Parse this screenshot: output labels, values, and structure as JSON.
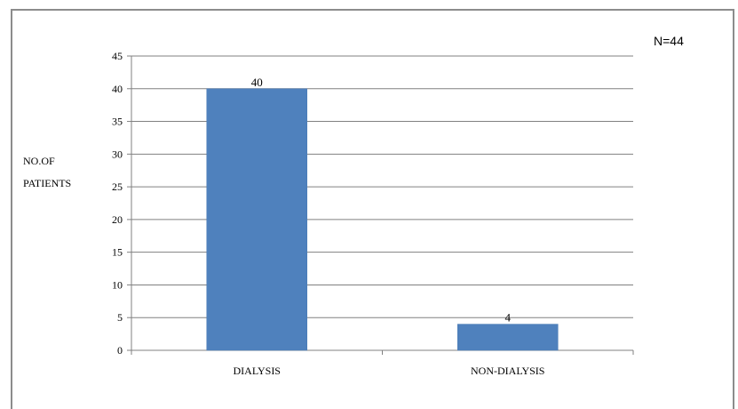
{
  "chart_data": {
    "type": "bar",
    "categories": [
      "DIALYSIS",
      "NON-DIALYSIS"
    ],
    "values": [
      40,
      4
    ],
    "data_labels": [
      "40",
      "4"
    ],
    "title": "",
    "xlabel": "",
    "ylabel_lines": [
      "NO.OF",
      "PATIENTS"
    ],
    "ylim": [
      0,
      45
    ],
    "yticks": [
      0,
      5,
      10,
      15,
      20,
      25,
      30,
      35,
      40,
      45
    ],
    "ytick_labels": [
      "0",
      "5",
      "10",
      "15",
      "20",
      "25",
      "30",
      "35",
      "40",
      "45"
    ],
    "grid": true,
    "bar_color": "#4f81bd",
    "annotation": "N=44"
  }
}
